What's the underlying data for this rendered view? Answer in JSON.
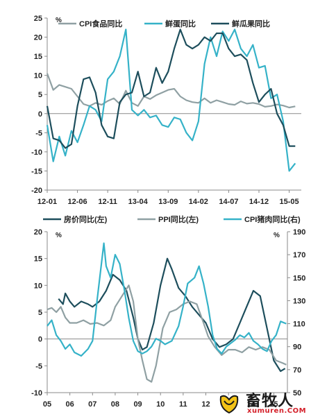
{
  "chart_data": [
    {
      "type": "line",
      "unit_label": "%",
      "ylim": [
        -20,
        25
      ],
      "yticks": [
        "25",
        "20",
        "15",
        "10",
        "5",
        "0",
        "-5",
        "-10",
        "-15",
        "-20"
      ],
      "x_tick_labels": [
        "12-01",
        "12-06",
        "12-11",
        "13-04",
        "13-09",
        "14-02",
        "14-07",
        "14-12",
        "15-05"
      ],
      "x_tick_months": [
        0,
        5,
        10,
        15,
        20,
        25,
        30,
        35,
        40
      ],
      "x_range": [
        0,
        42
      ],
      "legend": [
        "CPI食品同比",
        "鲜蛋同比",
        "鲜瓜果同比"
      ],
      "series": [
        {
          "name": "CPI食品同比",
          "color": "#8fa0a3",
          "x": [
            0,
            1,
            2,
            3,
            4,
            5,
            6,
            7,
            8,
            9,
            10,
            11,
            12,
            13,
            14,
            15,
            16,
            17,
            18,
            19,
            20,
            21,
            22,
            23,
            24,
            25,
            26,
            27,
            28,
            29,
            30,
            31,
            32,
            33,
            34,
            35,
            36,
            37,
            38,
            39,
            40,
            41
          ],
          "values": [
            10.5,
            6.2,
            7.5,
            7.0,
            6.5,
            4.5,
            2.5,
            2.0,
            2.8,
            2.3,
            3.3,
            4.0,
            2.5,
            6.0,
            2.8,
            2.0,
            4.5,
            3.8,
            4.8,
            5.5,
            6.2,
            6.5,
            4.5,
            3.5,
            3.0,
            2.8,
            4.0,
            2.8,
            3.5,
            3.0,
            2.5,
            2.3,
            3.2,
            2.6,
            2.8,
            2.5,
            1.8,
            2.0,
            2.4,
            2.1,
            1.6,
            1.9
          ]
        },
        {
          "name": "鲜蛋同比",
          "color": "#35b2c8",
          "x": [
            0,
            1,
            2,
            3,
            4,
            5,
            6,
            7,
            8,
            9,
            10,
            11,
            12,
            13,
            14,
            15,
            16,
            17,
            18,
            19,
            20,
            21,
            22,
            23,
            24,
            25,
            26,
            27,
            28,
            29,
            30,
            31,
            32,
            33,
            34,
            35,
            36,
            37,
            38,
            39,
            40,
            41
          ],
          "values": [
            -3,
            -12.5,
            -6,
            -11,
            -4.5,
            -7.5,
            -3,
            2,
            1,
            -2,
            9,
            11,
            15,
            22,
            1,
            -0.5,
            1,
            -1,
            -0.5,
            -3,
            -3.5,
            -1,
            -1.5,
            -5,
            -7,
            -2,
            13,
            20,
            15,
            21.5,
            19,
            22,
            17,
            15,
            18,
            12,
            12.5,
            4,
            5,
            -2,
            -15,
            -13
          ]
        },
        {
          "name": "鲜瓜果同比",
          "color": "#1d4e5c",
          "x": [
            0,
            1,
            2,
            3,
            4,
            5,
            6,
            7,
            8,
            9,
            10,
            11,
            12,
            13,
            14,
            15,
            16,
            17,
            18,
            19,
            20,
            21,
            22,
            23,
            24,
            25,
            26,
            27,
            28,
            29,
            30,
            31,
            32,
            33,
            34,
            35,
            36,
            37,
            38,
            39,
            40,
            41
          ],
          "values": [
            2,
            -6.5,
            -7,
            -9,
            -8,
            2,
            9,
            9.5,
            5.5,
            -3,
            -6,
            -6.5,
            3,
            5,
            5.5,
            11,
            4.5,
            5.5,
            12,
            8,
            11,
            17,
            22,
            18,
            17,
            18,
            20,
            19,
            21,
            21,
            17,
            15,
            15.5,
            14,
            8,
            3,
            5,
            6.5,
            0,
            -3,
            -8.5,
            -8.5
          ]
        }
      ]
    },
    {
      "type": "line",
      "left_unit_label": "%",
      "right_unit_label": "%",
      "ylim_left": [
        -10,
        20
      ],
      "ylim_right": [
        50,
        190
      ],
      "yticks_left": [
        "20",
        "15",
        "10",
        "5",
        "0",
        "-5",
        "-10"
      ],
      "yticks_right": [
        "190",
        "170",
        "150",
        "130",
        "110",
        "90",
        "70",
        "50"
      ],
      "x_tick_labels": [
        "05",
        "06",
        "07",
        "08",
        "09",
        "10",
        "11",
        "12",
        "13",
        "14",
        "15"
      ],
      "x_range": [
        2005,
        2015.6
      ],
      "legend": [
        "房价同比(左)",
        "PPI同比(左)",
        "CPI猪肉同比(右)"
      ],
      "series": [
        {
          "name": "房价同比(左)",
          "axis": "left",
          "color": "#1d4e5c",
          "x": [
            2005.5,
            2005.7,
            2005.8,
            2006.0,
            2006.2,
            2006.5,
            2006.8,
            2007.0,
            2007.3,
            2007.6,
            2007.9,
            2008.2,
            2008.5,
            2008.8,
            2009.0,
            2009.2,
            2009.4,
            2009.7,
            2010.0,
            2010.3,
            2010.5,
            2010.8,
            2011.1,
            2011.4,
            2011.7,
            2012.0,
            2012.3,
            2012.6,
            2012.9,
            2013.2,
            2013.5,
            2013.8,
            2014.1,
            2014.4,
            2014.7,
            2015.0,
            2015.3,
            2015.5
          ],
          "values": [
            7.5,
            6.5,
            8.5,
            7,
            6,
            7,
            6.5,
            6,
            7,
            9,
            12,
            11,
            9,
            4,
            0,
            -2,
            -1.5,
            3,
            10,
            15,
            13,
            9.5,
            8,
            6,
            4.5,
            3,
            0,
            -1.5,
            -1,
            0,
            3,
            6,
            9,
            8,
            2,
            -4,
            -6,
            -5.5
          ]
        },
        {
          "name": "PPI同比(左)",
          "axis": "left",
          "color": "#8fa0a3",
          "x": [
            2005.0,
            2005.2,
            2005.4,
            2005.6,
            2005.8,
            2006.0,
            2006.3,
            2006.6,
            2006.9,
            2007.2,
            2007.5,
            2007.8,
            2008.0,
            2008.3,
            2008.6,
            2008.8,
            2009.0,
            2009.2,
            2009.4,
            2009.6,
            2009.8,
            2010.1,
            2010.4,
            2010.7,
            2011.0,
            2011.3,
            2011.6,
            2011.9,
            2012.1,
            2012.4,
            2012.7,
            2013.0,
            2013.3,
            2013.6,
            2013.9,
            2014.2,
            2014.5,
            2014.8,
            2015.1,
            2015.4,
            2015.55
          ],
          "values": [
            5.5,
            5.8,
            5,
            6,
            4,
            3,
            3,
            3.5,
            2.8,
            3,
            2.5,
            3.5,
            6,
            8,
            10,
            7,
            0,
            -4,
            -7.5,
            -8,
            -5,
            2,
            5,
            5.5,
            6.5,
            7,
            6.5,
            3,
            0.5,
            -1.5,
            -3,
            -2,
            -2,
            -2.5,
            -1.5,
            -2,
            -1.5,
            -2,
            -4,
            -4.5,
            -4.8
          ]
        },
        {
          "name": "CPI猪肉同比(右)",
          "axis": "right",
          "color": "#35b2c8",
          "x": [
            2005.0,
            2005.2,
            2005.4,
            2005.6,
            2005.8,
            2006.0,
            2006.2,
            2006.5,
            2006.8,
            2007.0,
            2007.2,
            2007.5,
            2007.6,
            2007.8,
            2008.0,
            2008.2,
            2008.4,
            2008.6,
            2008.8,
            2009.0,
            2009.2,
            2009.4,
            2009.6,
            2009.8,
            2010.0,
            2010.2,
            2010.5,
            2010.8,
            2011.0,
            2011.2,
            2011.5,
            2011.7,
            2011.9,
            2012.1,
            2012.3,
            2012.5,
            2012.7,
            2012.9,
            2013.1,
            2013.3,
            2013.5,
            2013.7,
            2013.9,
            2014.1,
            2014.3,
            2014.5,
            2014.7,
            2014.9,
            2015.1,
            2015.3,
            2015.55
          ],
          "values": [
            108,
            113,
            100,
            95,
            88,
            92,
            85,
            82,
            88,
            95,
            130,
            180,
            160,
            150,
            170,
            162,
            140,
            115,
            95,
            86,
            84,
            86,
            90,
            97,
            95,
            92,
            95,
            108,
            125,
            145,
            150,
            160,
            145,
            125,
            100,
            88,
            84,
            90,
            93,
            96,
            100,
            98,
            102,
            95,
            92,
            88,
            86,
            95,
            100,
            112,
            110
          ]
        }
      ]
    }
  ],
  "watermark": {
    "cn": "畜牧人",
    "en": "xumuren.COM"
  }
}
